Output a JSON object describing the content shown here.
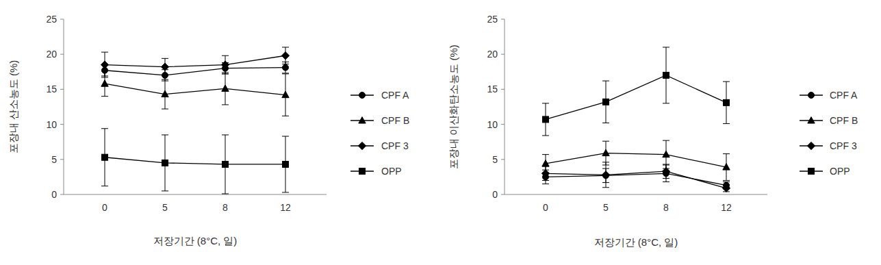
{
  "chart_data": [
    {
      "type": "line",
      "x_label": "저장기간 (8°C, 일)",
      "y_label": "포장내 산소농도 (%)",
      "categories": [
        "0",
        "5",
        "8",
        "12"
      ],
      "ylim": [
        0,
        25
      ],
      "yticks": [
        0,
        5,
        10,
        15,
        20,
        25
      ],
      "legend": "right",
      "series": [
        {
          "name": "CPF A",
          "color": "#000000",
          "marker": "circle",
          "values": [
            17.7,
            17.0,
            18.0,
            18.1
          ],
          "errors": [
            0.8,
            0.8,
            0.8,
            0.8
          ]
        },
        {
          "name": "CPF B",
          "color": "#000000",
          "marker": "triangle",
          "values": [
            15.8,
            14.3,
            15.1,
            14.2
          ],
          "errors": [
            1.8,
            2.1,
            2.3,
            3.0
          ]
        },
        {
          "name": "CPF 3",
          "color": "#000000",
          "marker": "diamond",
          "values": [
            18.5,
            18.2,
            18.5,
            19.8
          ],
          "errors": [
            1.8,
            1.2,
            1.3,
            1.2
          ]
        },
        {
          "name": "OPP",
          "color": "#000000",
          "marker": "square",
          "values": [
            5.3,
            4.5,
            4.3,
            4.3
          ],
          "errors": [
            4.1,
            4.0,
            4.2,
            4.0
          ]
        }
      ]
    },
    {
      "type": "line",
      "x_label": "저장기간 (8°C, 일)",
      "y_label": "포장내 이산화탄소농도 (%)",
      "categories": [
        "0",
        "5",
        "8",
        "12"
      ],
      "ylim": [
        0,
        25
      ],
      "yticks": [
        0,
        5,
        10,
        15,
        20,
        25
      ],
      "legend": "right",
      "series": [
        {
          "name": "CPF A",
          "color": "#000000",
          "marker": "circle",
          "values": [
            2.5,
            2.7,
            3.0,
            1.3
          ],
          "errors": [
            1.0,
            1.0,
            1.2,
            0.5
          ]
        },
        {
          "name": "CPF B",
          "color": "#000000",
          "marker": "triangle",
          "values": [
            4.4,
            5.9,
            5.7,
            3.9
          ],
          "errors": [
            1.3,
            1.7,
            2.0,
            1.9
          ]
        },
        {
          "name": "CPF 3",
          "color": "#000000",
          "marker": "diamond",
          "values": [
            3.0,
            2.8,
            3.3,
            0.9
          ],
          "errors": [
            1.0,
            1.8,
            1.0,
            0.5
          ]
        },
        {
          "name": "OPP",
          "color": "#000000",
          "marker": "square",
          "values": [
            10.7,
            13.2,
            17.0,
            13.1
          ],
          "errors": [
            2.3,
            3.0,
            4.0,
            3.0
          ]
        }
      ]
    }
  ]
}
